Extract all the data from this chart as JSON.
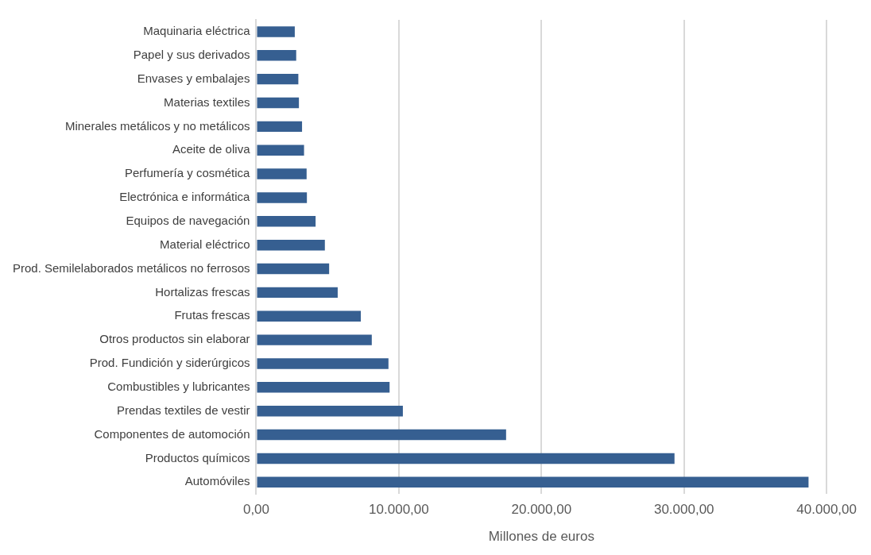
{
  "chart_data": {
    "type": "bar",
    "orientation": "horizontal",
    "xlabel": "Millones de euros",
    "categories": [
      "Maquinaria eléctrica",
      "Papel y sus derivados",
      "Envases y embalajes",
      "Materias textiles",
      "Minerales metálicos y no metálicos",
      "Aceite de oliva",
      "Perfumería y cosmética",
      "Electrónica e informática",
      "Equipos de navegación",
      "Material eléctrico",
      "Prod. Semilelaborados metálicos no ferrosos",
      "Hortalizas frescas",
      "Frutas frescas",
      "Otros productos sin elaborar",
      "Prod. Fundición y siderúrgicos",
      "Combustibles y lubricantes",
      "Prendas textiles de vestir",
      "Componentes de automoción",
      "Productos químicos",
      "Automóviles"
    ],
    "values": [
      2700,
      2800,
      2950,
      2990,
      3210,
      3350,
      3530,
      3550,
      4160,
      4810,
      5110,
      5710,
      7330,
      8100,
      9270,
      9350,
      10280,
      17520,
      29330,
      38730
    ],
    "color": "#365f91",
    "xlim": [
      0,
      40000
    ],
    "xticks": [
      {
        "value": 0,
        "label": "0,00"
      },
      {
        "value": 10000,
        "label": "10.000,00"
      },
      {
        "value": 20000,
        "label": "20.000,00"
      },
      {
        "value": 30000,
        "label": "30.000,00"
      },
      {
        "value": 40000,
        "label": "40.000,00"
      }
    ],
    "grid": "x",
    "legend": false
  }
}
